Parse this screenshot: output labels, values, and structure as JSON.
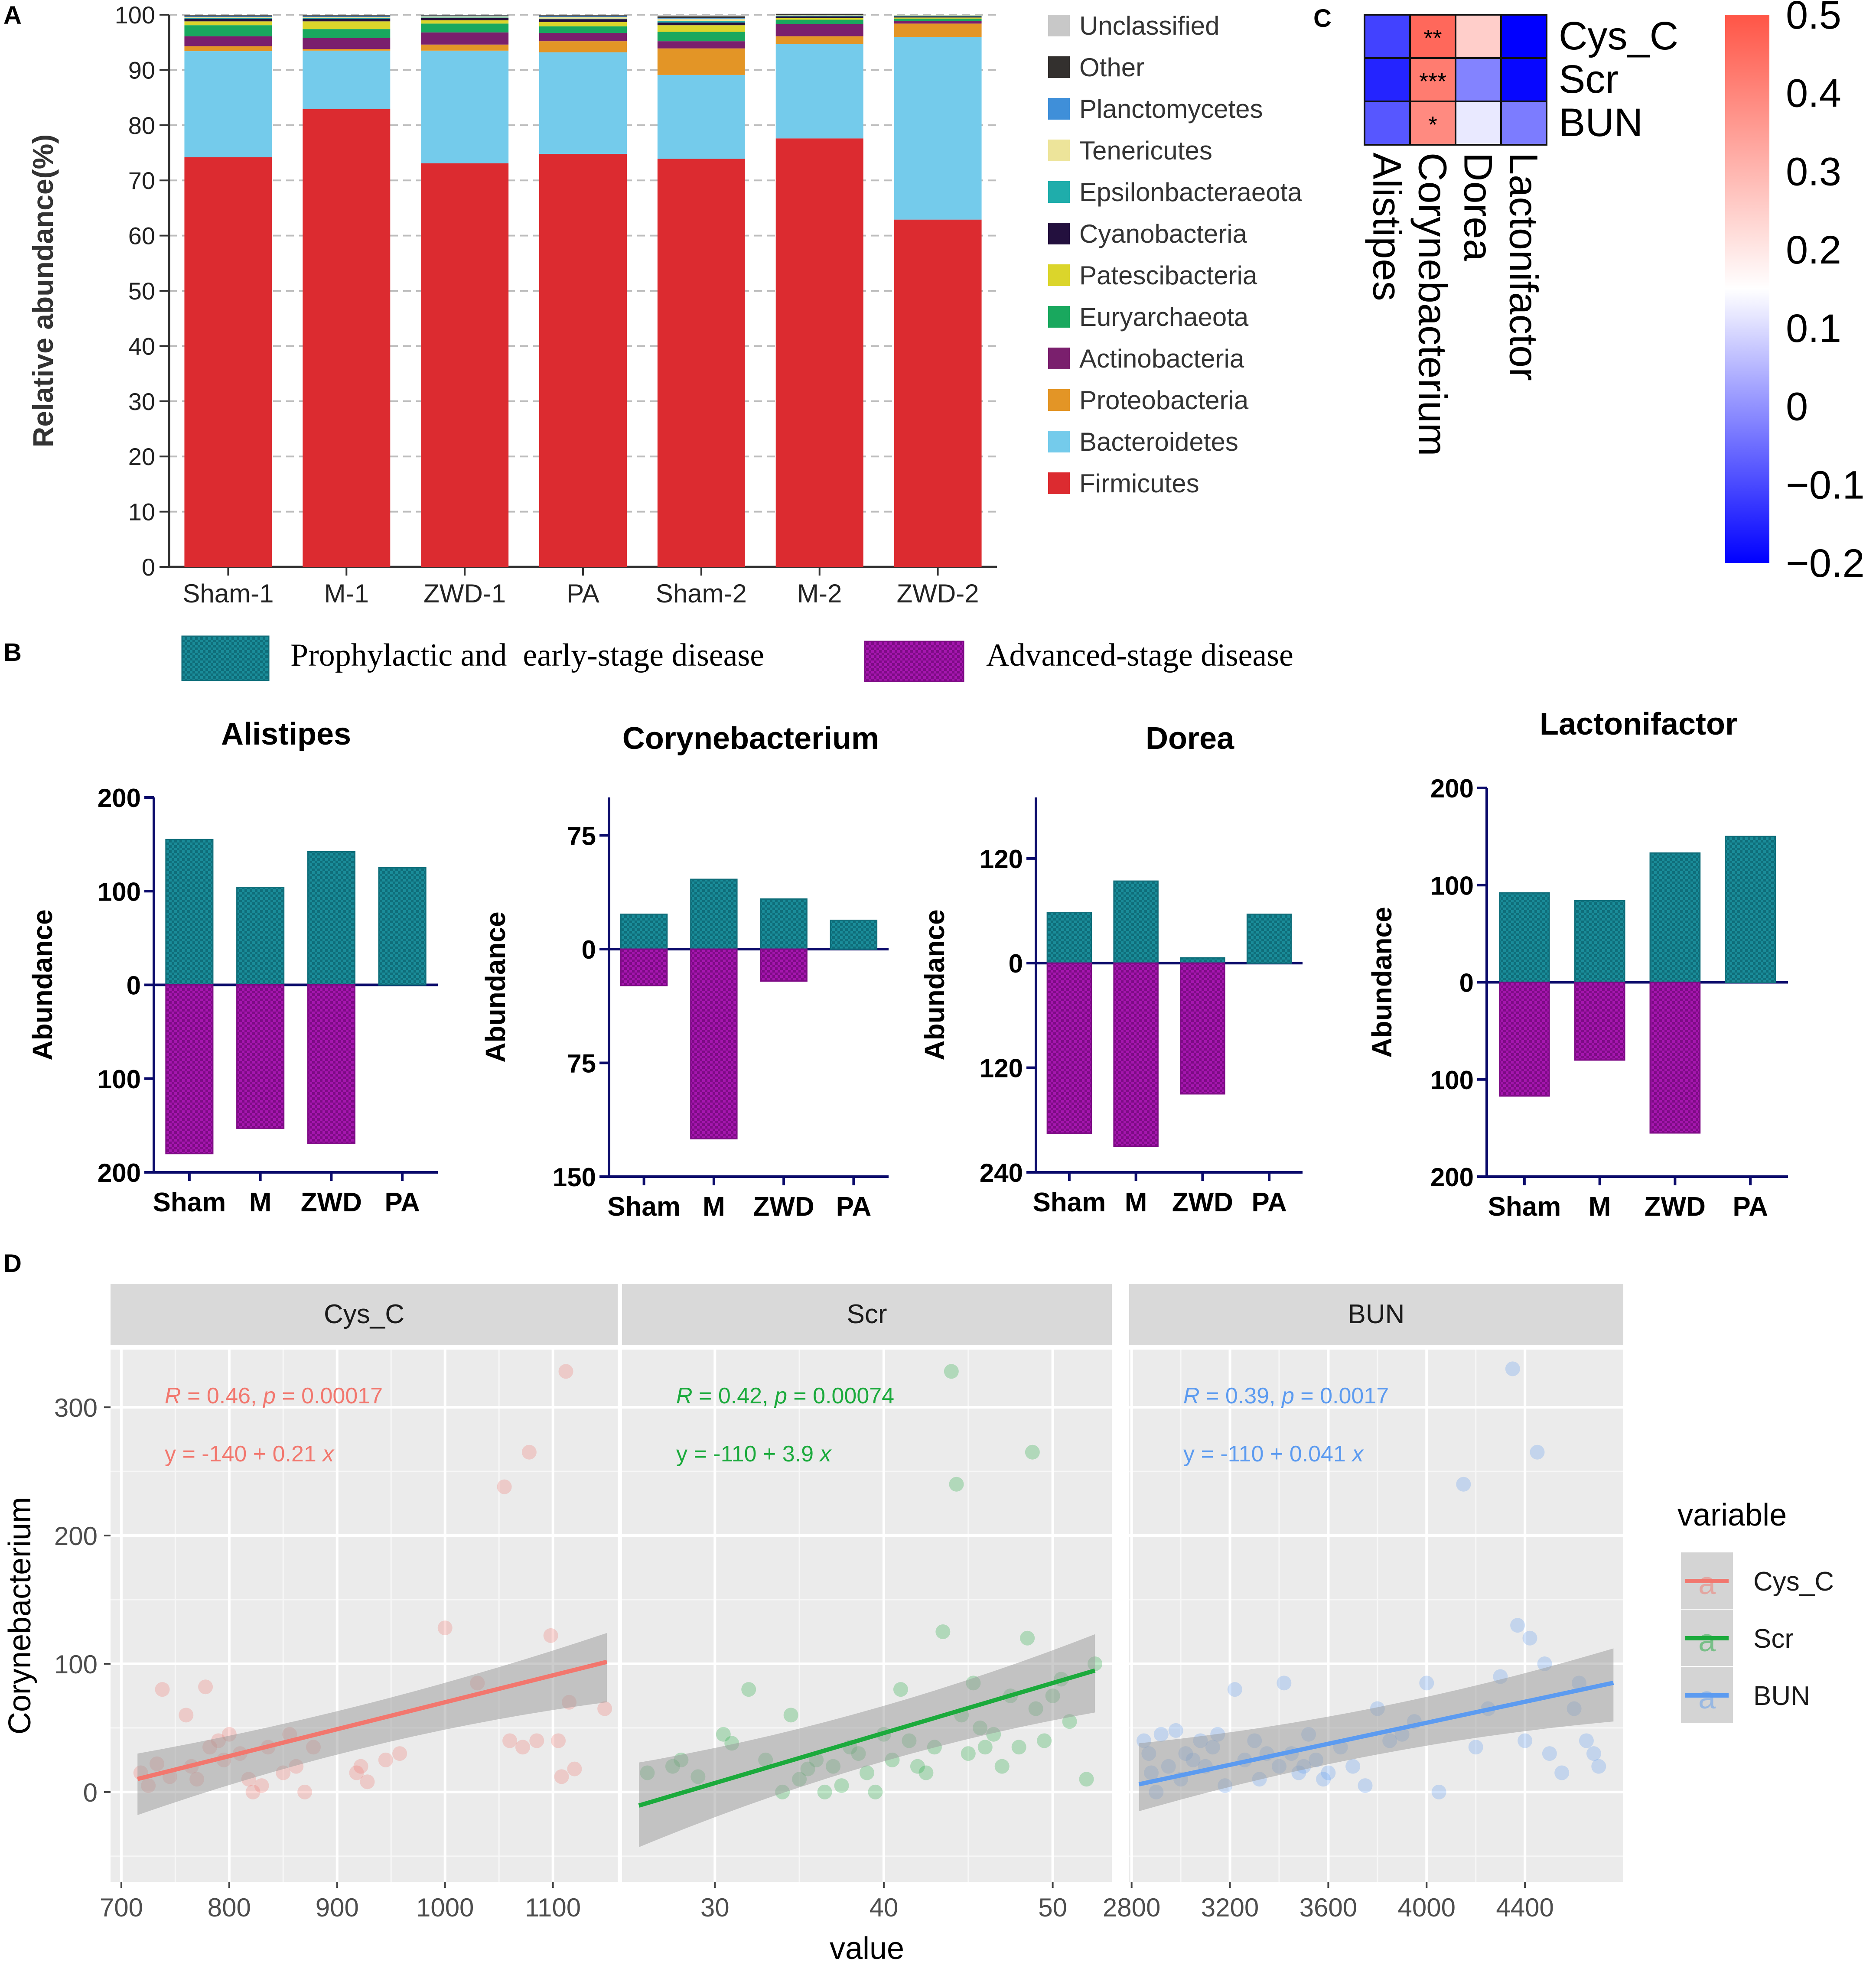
{
  "panel_letters": [
    "A",
    "B",
    "C",
    "D"
  ],
  "chart_data": [
    {
      "panel": "A",
      "type": "bar",
      "stacked": true,
      "ylabel": "Relative abundance(%)",
      "ylim": [
        0,
        100
      ],
      "yticks": [
        0,
        10,
        20,
        30,
        40,
        50,
        60,
        70,
        80,
        90,
        100
      ],
      "categories": [
        "Sham-1",
        "M-1",
        "ZWD-1",
        "PA",
        "Sham-2",
        "M-2",
        "ZWD-2"
      ],
      "series": [
        {
          "name": "Firmicutes",
          "color": "#DC2B30",
          "values": [
            74.2,
            82.9,
            73.1,
            74.8,
            73.9,
            77.6,
            62.9
          ]
        },
        {
          "name": "Bacteroidetes",
          "color": "#74CBEB",
          "values": [
            19.2,
            10.6,
            20.4,
            18.4,
            15.2,
            17.1,
            33.1
          ]
        },
        {
          "name": "Proteobacteria",
          "color": "#E39526",
          "values": [
            0.9,
            0.3,
            1.1,
            2.0,
            4.8,
            1.4,
            2.4
          ]
        },
        {
          "name": "Actinobacteria",
          "color": "#7A1F6D",
          "values": [
            1.8,
            2.0,
            2.2,
            1.5,
            1.3,
            2.2,
            0.5
          ]
        },
        {
          "name": "Euryarchaeota",
          "color": "#19A85E",
          "values": [
            2.0,
            1.6,
            1.6,
            1.2,
            1.7,
            0.8,
            0.4
          ]
        },
        {
          "name": "Patescibacteria",
          "color": "#DBD52B",
          "values": [
            0.7,
            1.4,
            0.6,
            0.8,
            1.2,
            0.3,
            0.2
          ]
        },
        {
          "name": "Cyanobacteria",
          "color": "#23103E",
          "values": [
            0.5,
            0.5,
            0.4,
            0.5,
            0.5,
            0.3,
            0.2
          ]
        },
        {
          "name": "Epsilonbacteraeota",
          "color": "#1FADAB",
          "values": [
            0.1,
            0.1,
            0.1,
            0.1,
            0.3,
            0.1,
            0.1
          ]
        },
        {
          "name": "Tenericutes",
          "color": "#EDE49A",
          "values": [
            0.2,
            0.2,
            0.2,
            0.3,
            0.4,
            0.1,
            0.1
          ]
        },
        {
          "name": "Planctomycetes",
          "color": "#3F8FD9",
          "values": [
            0.1,
            0.1,
            0.1,
            0.1,
            0.1,
            0.1,
            0.1
          ]
        },
        {
          "name": "Other",
          "color": "#33302E",
          "values": [
            0.2,
            0.2,
            0.1,
            0.2,
            0.3,
            0.1,
            0.0
          ]
        },
        {
          "name": "Unclassified",
          "color": "#C8C8C8",
          "values": [
            0.1,
            0.1,
            0.1,
            0.1,
            0.3,
            0.1,
            0.0
          ]
        }
      ]
    },
    {
      "panel": "B",
      "type": "bar",
      "ylabel": "Abundance",
      "categories": [
        "Sham",
        "M",
        "ZWD",
        "PA"
      ],
      "legend": [
        {
          "name": "Prophylactic and  early-stage disease",
          "color": "#1A8C99"
        },
        {
          "name": "Advanced-stage disease",
          "color": "#9B12A3"
        }
      ],
      "subplots": [
        {
          "title": "Alistipes",
          "ylim": [
            -200,
            200
          ],
          "tick_values": [
            200,
            100,
            0,
            -100,
            -200
          ],
          "tick_labels": [
            "200",
            "100",
            "0",
            "100",
            "200"
          ],
          "early": [
            155,
            104,
            142,
            125
          ],
          "advanced": [
            -180,
            -153,
            -169,
            null
          ]
        },
        {
          "title": "Corynebacterium",
          "ylim": [
            -150,
            100
          ],
          "tick_values": [
            75,
            0,
            -75,
            -150
          ],
          "tick_labels": [
            "75",
            "0",
            "75",
            "150"
          ],
          "early": [
            23,
            46,
            33,
            19
          ],
          "advanced": [
            -24,
            -125,
            -21,
            null
          ]
        },
        {
          "title": "Dorea",
          "ylim": [
            -240,
            190
          ],
          "tick_values": [
            120,
            0,
            -120,
            -240
          ],
          "tick_labels": [
            "120",
            "0",
            "120",
            "240"
          ],
          "early": [
            58,
            94,
            6,
            56
          ],
          "advanced": [
            -195,
            -210,
            -150,
            null
          ]
        },
        {
          "title": "Lactonifactor",
          "ylim": [
            -200,
            200
          ],
          "tick_values": [
            200,
            100,
            0,
            -100,
            -200
          ],
          "tick_labels": [
            "200",
            "100",
            "0",
            "100",
            "200"
          ],
          "early": [
            92,
            84,
            133,
            150
          ],
          "advanced": [
            -117,
            -80,
            -155,
            null
          ]
        }
      ]
    },
    {
      "panel": "C",
      "type": "heatmap",
      "rows": [
        "Cys_C",
        "Scr",
        "BUN"
      ],
      "columns": [
        "Alistipes",
        "Corynebacterium",
        "Dorea",
        "Lactonifactor"
      ],
      "values": [
        [
          -0.11,
          0.46,
          0.25,
          -0.2
        ],
        [
          -0.15,
          0.42,
          -0.02,
          -0.19
        ],
        [
          -0.08,
          0.39,
          0.12,
          -0.03
        ]
      ],
      "significance": [
        [
          "",
          "**",
          "",
          ""
        ],
        [
          "",
          "***",
          "",
          ""
        ],
        [
          "",
          "*",
          "",
          ""
        ]
      ],
      "colorbar": {
        "min": -0.2,
        "max": 0.5,
        "ticks": [
          "0.5",
          "0.4",
          "0.3",
          "0.2",
          "0.1",
          "0",
          "−0.1",
          "−0.2"
        ],
        "tick_values": [
          0.5,
          0.4,
          0.3,
          0.2,
          0.1,
          0,
          -0.1,
          -0.2
        ]
      }
    },
    {
      "panel": "D",
      "type": "scatter",
      "ylabel": "Corynebacterium",
      "xlabel": "value",
      "ylim": [
        -70,
        345
      ],
      "yticks": [
        0,
        100,
        200,
        300
      ],
      "legend_title": "variable",
      "legend_key_glyph": "a",
      "facets": [
        {
          "name": "Cys_C",
          "color": "#F2776E",
          "xlim": [
            690,
            1160
          ],
          "xticks": [
            700,
            800,
            900,
            1000,
            1100
          ],
          "r_label": "R",
          "r_text": " = 0.46, ",
          "p_label": "p",
          "p_text": " = 0.00017",
          "eq_text": "y = -140 + 0.21 ",
          "eq_var": "x",
          "fit": {
            "intercept": -140,
            "slope": 0.21,
            "x0": 715,
            "x1": 1150,
            "band_lo": [
              -18,
              70
            ],
            "band_hi": [
              30,
              124
            ]
          },
          "points": [
            [
              718,
              15
            ],
            [
              725,
              5
            ],
            [
              733,
              22
            ],
            [
              738,
              80
            ],
            [
              745,
              12
            ],
            [
              760,
              60
            ],
            [
              765,
              20
            ],
            [
              770,
              10
            ],
            [
              778,
              82
            ],
            [
              782,
              35
            ],
            [
              790,
              40
            ],
            [
              795,
              25
            ],
            [
              800,
              45
            ],
            [
              810,
              30
            ],
            [
              818,
              10
            ],
            [
              822,
              0
            ],
            [
              830,
              5
            ],
            [
              836,
              35
            ],
            [
              850,
              15
            ],
            [
              856,
              45
            ],
            [
              862,
              20
            ],
            [
              870,
              0
            ],
            [
              878,
              35
            ],
            [
              918,
              15
            ],
            [
              922,
              20
            ],
            [
              928,
              8
            ],
            [
              945,
              25
            ],
            [
              958,
              30
            ],
            [
              1000,
              128
            ],
            [
              1030,
              85
            ],
            [
              1055,
              238
            ],
            [
              1060,
              40
            ],
            [
              1072,
              35
            ],
            [
              1078,
              265
            ],
            [
              1085,
              40
            ],
            [
              1098,
              122
            ],
            [
              1105,
              40
            ],
            [
              1108,
              12
            ],
            [
              1112,
              328
            ],
            [
              1115,
              70
            ],
            [
              1120,
              18
            ],
            [
              1148,
              65
            ]
          ]
        },
        {
          "name": "Scr",
          "color": "#1BAA3C",
          "xlim": [
            24.5,
            53.5
          ],
          "xticks": [
            30,
            40,
            50
          ],
          "r_label": "R",
          "r_text": " = 0.42, ",
          "p_label": "p",
          "p_text": " = 0.00074",
          "eq_text": "y = -110 + 3.9 ",
          "eq_var": "x",
          "fit": {
            "intercept": -110,
            "slope": 3.9,
            "x0": 25.5,
            "x1": 52.5,
            "band_lo": [
              -43,
              62
            ],
            "band_hi": [
              23,
              123
            ]
          },
          "points": [
            [
              26,
              15
            ],
            [
              27.5,
              20
            ],
            [
              28,
              25
            ],
            [
              29,
              12
            ],
            [
              30.5,
              45
            ],
            [
              31,
              38
            ],
            [
              32,
              80
            ],
            [
              33,
              25
            ],
            [
              34,
              0
            ],
            [
              34.5,
              60
            ],
            [
              35,
              10
            ],
            [
              35.5,
              18
            ],
            [
              36,
              25
            ],
            [
              36.5,
              0
            ],
            [
              37,
              20
            ],
            [
              37.5,
              5
            ],
            [
              38,
              35
            ],
            [
              38.5,
              30
            ],
            [
              39,
              15
            ],
            [
              39.5,
              0
            ],
            [
              40,
              45
            ],
            [
              40.5,
              25
            ],
            [
              41,
              80
            ],
            [
              41.5,
              40
            ],
            [
              42,
              20
            ],
            [
              42.5,
              15
            ],
            [
              43,
              35
            ],
            [
              43.5,
              125
            ],
            [
              44,
              328
            ],
            [
              44.3,
              240
            ],
            [
              44.6,
              60
            ],
            [
              45,
              30
            ],
            [
              45.3,
              85
            ],
            [
              45.7,
              50
            ],
            [
              46,
              35
            ],
            [
              46.5,
              45
            ],
            [
              47,
              20
            ],
            [
              47.5,
              75
            ],
            [
              48,
              35
            ],
            [
              48.5,
              120
            ],
            [
              48.8,
              265
            ],
            [
              49,
              65
            ],
            [
              49.5,
              40
            ],
            [
              50,
              75
            ],
            [
              50.5,
              88
            ],
            [
              51,
              55
            ],
            [
              52,
              10
            ],
            [
              52.5,
              100
            ]
          ]
        },
        {
          "name": "BUN",
          "color": "#5C9BF0",
          "xlim": [
            2790,
            4800
          ],
          "xticks": [
            2800,
            3200,
            3600,
            4000,
            4400
          ],
          "r_label": "R",
          "r_text": " = 0.39, ",
          "p_label": "p",
          "p_text": " = 0.0017",
          "eq_text": "y = -110 + 0.041 ",
          "eq_var": "x",
          "fit": {
            "intercept": -110,
            "slope": 0.041,
            "x0": 2830,
            "x1": 4760,
            "band_lo": [
              -15,
              55
            ],
            "band_hi": [
              38,
              112
            ]
          },
          "points": [
            [
              2850,
              40
            ],
            [
              2870,
              30
            ],
            [
              2880,
              15
            ],
            [
              2900,
              0
            ],
            [
              2920,
              45
            ],
            [
              2950,
              20
            ],
            [
              2980,
              48
            ],
            [
              3000,
              10
            ],
            [
              3020,
              30
            ],
            [
              3050,
              25
            ],
            [
              3080,
              40
            ],
            [
              3100,
              20
            ],
            [
              3130,
              35
            ],
            [
              3150,
              45
            ],
            [
              3180,
              5
            ],
            [
              3220,
              80
            ],
            [
              3260,
              25
            ],
            [
              3300,
              40
            ],
            [
              3320,
              10
            ],
            [
              3350,
              30
            ],
            [
              3400,
              20
            ],
            [
              3420,
              85
            ],
            [
              3450,
              30
            ],
            [
              3480,
              15
            ],
            [
              3500,
              20
            ],
            [
              3520,
              45
            ],
            [
              3550,
              25
            ],
            [
              3580,
              10
            ],
            [
              3600,
              15
            ],
            [
              3650,
              35
            ],
            [
              3700,
              20
            ],
            [
              3750,
              5
            ],
            [
              3800,
              65
            ],
            [
              3850,
              40
            ],
            [
              3900,
              45
            ],
            [
              3950,
              55
            ],
            [
              4000,
              85
            ],
            [
              4050,
              0
            ],
            [
              4150,
              240
            ],
            [
              4200,
              35
            ],
            [
              4250,
              65
            ],
            [
              4300,
              90
            ],
            [
              4350,
              330
            ],
            [
              4370,
              130
            ],
            [
              4400,
              40
            ],
            [
              4420,
              120
            ],
            [
              4450,
              265
            ],
            [
              4480,
              100
            ],
            [
              4500,
              30
            ],
            [
              4550,
              15
            ],
            [
              4600,
              65
            ],
            [
              4620,
              85
            ],
            [
              4650,
              40
            ],
            [
              4680,
              30
            ],
            [
              4700,
              20
            ]
          ]
        }
      ]
    }
  ]
}
